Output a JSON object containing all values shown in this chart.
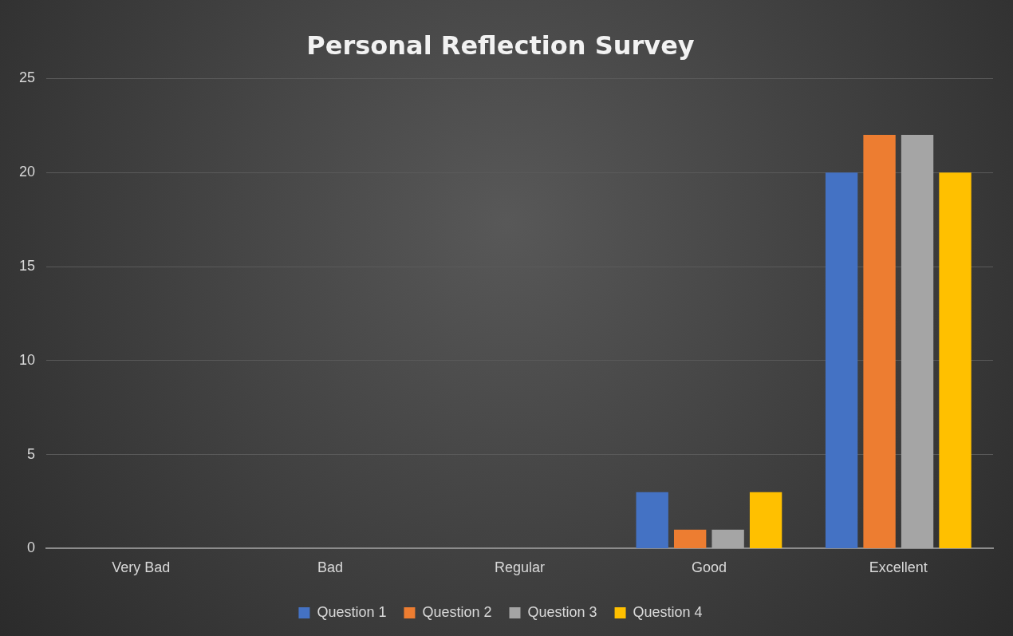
{
  "chart_data": {
    "type": "bar",
    "title": "Personal Reflection Survey",
    "categories": [
      "Very Bad",
      "Bad",
      "Regular",
      "Good",
      "Excellent"
    ],
    "series": [
      {
        "name": "Question 1",
        "color": "#4472c4",
        "values": [
          0,
          0,
          0,
          3,
          20
        ]
      },
      {
        "name": "Question 2",
        "color": "#ed7d31",
        "values": [
          0,
          0,
          0,
          1,
          22
        ]
      },
      {
        "name": "Question 3",
        "color": "#a5a5a5",
        "values": [
          0,
          0,
          0,
          1,
          22
        ]
      },
      {
        "name": "Question 4",
        "color": "#ffc000",
        "values": [
          0,
          0,
          0,
          3,
          20
        ]
      }
    ],
    "ylim": [
      0,
      25
    ],
    "yticks": [
      0,
      5,
      10,
      15,
      20,
      25
    ],
    "grid": "y",
    "legend": "bottom"
  }
}
